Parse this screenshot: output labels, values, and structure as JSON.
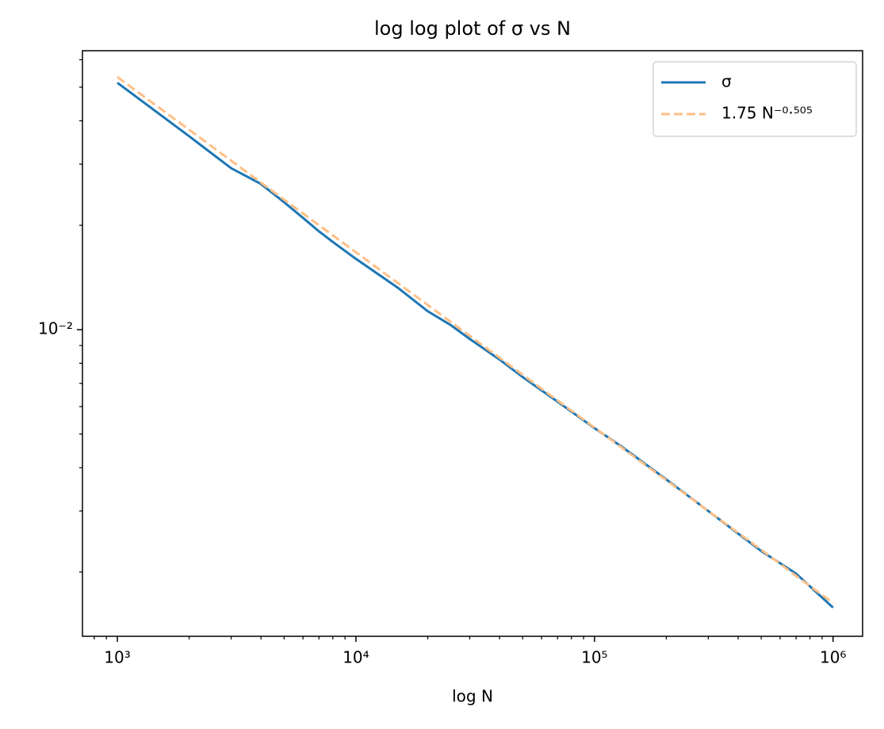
{
  "chart_data": {
    "type": "line",
    "title": "log log plot of σ vs N",
    "xlabel": "log N",
    "x": [
      1000,
      2000,
      3000,
      4000,
      5000,
      6000,
      7000,
      8000,
      10000,
      15000,
      20000,
      25000,
      30000,
      40000,
      50000,
      70000,
      100000,
      130000,
      200000,
      300000,
      500000,
      700000,
      1000000
    ],
    "series": [
      {
        "name": "σ",
        "color": "#1f77b4",
        "dash": false,
        "values": [
          0.0515,
          0.0361,
          0.0292,
          0.0263,
          0.0233,
          0.021,
          0.0192,
          0.0179,
          0.016,
          0.0132,
          0.0113,
          0.0103,
          0.0094,
          0.0082,
          0.0073,
          0.0062,
          0.0052,
          0.0046,
          0.0037,
          0.003,
          0.0023,
          0.00198,
          0.00158
        ]
      },
      {
        "name": "1.75 N⁻⁰·⁵⁰⁵",
        "color": "#ffbf86",
        "dash": true,
        "values": [
          0.0535,
          0.0377,
          0.0307,
          0.02655,
          0.0237,
          0.02163,
          0.02,
          0.01871,
          0.01672,
          0.01362,
          0.01178,
          0.01052,
          0.0096,
          0.0083,
          0.00741,
          0.00625,
          0.00522,
          0.00457,
          0.00368,
          0.003,
          0.00232,
          0.00195,
          0.00163
        ]
      }
    ],
    "xscale": "log",
    "yscale": "log",
    "xlim": [
      714,
      1330000
    ],
    "ylim": [
      0.001306,
      0.0637
    ],
    "xticks": [
      {
        "value": 1000,
        "label": "10³"
      },
      {
        "value": 10000,
        "label": "10⁴"
      },
      {
        "value": 100000,
        "label": "10⁵"
      },
      {
        "value": 1000000,
        "label": "10⁶"
      }
    ],
    "xminorticks": [
      800,
      900,
      2000,
      3000,
      4000,
      5000,
      6000,
      7000,
      8000,
      9000,
      20000,
      30000,
      40000,
      50000,
      60000,
      70000,
      80000,
      90000,
      200000,
      300000,
      400000,
      500000,
      600000,
      700000,
      800000,
      900000
    ],
    "yticks": [
      {
        "value": 0.01,
        "label": "10⁻²"
      }
    ],
    "yminorticks": [
      0.002,
      0.003,
      0.004,
      0.005,
      0.006,
      0.007,
      0.008,
      0.009,
      0.02,
      0.03,
      0.04,
      0.05,
      0.06
    ],
    "legend": "upper right",
    "grid": false
  }
}
